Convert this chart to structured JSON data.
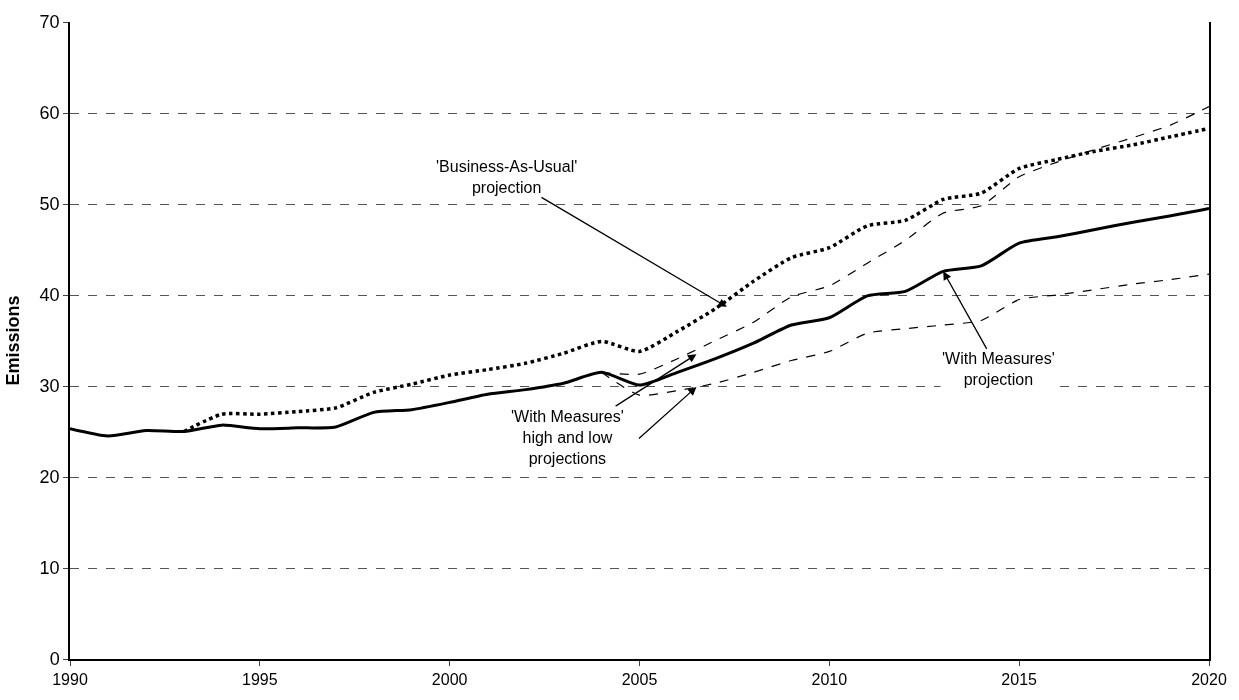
{
  "chart_data": {
    "type": "line",
    "ylabel": "Emissions",
    "xlim": [
      1990,
      2020
    ],
    "xticks": [
      1990,
      1995,
      2000,
      2005,
      2010,
      2015,
      2020
    ],
    "ylim": [
      0,
      70
    ],
    "yticks": [
      0,
      10,
      20,
      30,
      40,
      50,
      60,
      70
    ],
    "grid": "y",
    "marker": "none",
    "series": [
      {
        "color": "#000000",
        "line_style": "solid",
        "x": [
          1990,
          1991,
          1992,
          1993,
          1994,
          1995,
          1996,
          1997,
          1998,
          1999,
          2000,
          2001,
          2002,
          2003,
          2004,
          2005,
          2006,
          2007,
          2008,
          2009,
          2010,
          2011,
          2012,
          2013,
          2014,
          2015,
          2016,
          2017,
          2018,
          2019,
          2020
        ],
        "values": [
          25.3,
          24.5,
          25.1,
          25.0,
          25.7,
          25.3,
          25.4,
          25.5,
          27.1,
          27.4,
          28.2,
          29.1,
          29.6,
          30.3,
          31.5,
          30.1,
          31.5,
          33.0,
          34.7,
          36.7,
          37.5,
          39.9,
          40.4,
          42.6,
          43.2,
          45.7,
          46.4,
          47.2,
          48.0,
          48.7,
          49.5
        ]
      },
      {
        "color": "#000000",
        "line_style": "dotted",
        "x": [
          1993,
          1994,
          1995,
          1996,
          1997,
          1998,
          1999,
          2000,
          2001,
          2002,
          2003,
          2004,
          2005,
          2006,
          2007,
          2008,
          2009,
          2010,
          2011,
          2012,
          2013,
          2014,
          2015,
          2016,
          2017,
          2018,
          2019,
          2020
        ],
        "values": [
          25.0,
          26.9,
          26.9,
          27.2,
          27.6,
          29.3,
          30.2,
          31.2,
          31.8,
          32.5,
          33.6,
          34.9,
          33.8,
          36.0,
          38.5,
          41.5,
          44.1,
          45.2,
          47.6,
          48.2,
          50.5,
          51.2,
          53.9,
          54.9,
          55.8,
          56.5,
          57.4,
          58.3
        ]
      },
      {
        "color": "#000000",
        "line_style": "dashed",
        "x": [
          2004,
          2005,
          2006,
          2007,
          2008,
          2009,
          2010,
          2011,
          2012,
          2013,
          2014,
          2015,
          2016,
          2017,
          2018,
          2019,
          2020
        ],
        "values": [
          31.5,
          31.3,
          33.0,
          35.0,
          37.0,
          39.8,
          41.0,
          43.5,
          46.0,
          49.0,
          49.8,
          53.0,
          54.6,
          56.0,
          57.3,
          58.7,
          60.7
        ]
      },
      {
        "color": "#000000",
        "line_style": "dashed",
        "x": [
          2004,
          2005,
          2006,
          2007,
          2008,
          2009,
          2010,
          2011,
          2012,
          2013,
          2014,
          2015,
          2016,
          2017,
          2018,
          2019,
          2020
        ],
        "values": [
          31.5,
          29.0,
          29.5,
          30.3,
          31.5,
          32.8,
          33.8,
          35.8,
          36.3,
          36.7,
          37.2,
          39.5,
          40.0,
          40.6,
          41.2,
          41.7,
          42.3
        ]
      }
    ],
    "annotations": [
      {
        "text": "'Business-As-Usual'\nprojection",
        "x": 2007.3,
        "y": 38.7
      },
      {
        "text": "'With Measures'\nprojection",
        "x": 2013,
        "y": 42.6
      },
      {
        "text": "'With Measures'\nhigh and low\nprojections",
        "x": 2006.5,
        "y": 33.5
      }
    ]
  }
}
